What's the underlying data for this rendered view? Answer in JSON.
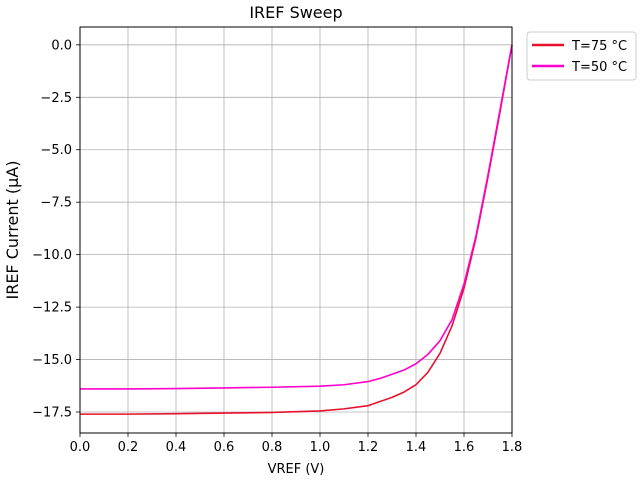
{
  "chart_data": {
    "type": "line",
    "title": "IREF Sweep",
    "xlabel": "VREF (V)",
    "ylabel": "IREF Current (µA)",
    "xlim": [
      0.0,
      1.8
    ],
    "ylim": [
      -18.5,
      0.85
    ],
    "xticks": [
      "0.0",
      "0.2",
      "0.4",
      "0.6",
      "0.8",
      "1.0",
      "1.2",
      "1.4",
      "1.6",
      "1.8"
    ],
    "yticks": [
      "0.0",
      "−2.5",
      "−5.0",
      "−7.5",
      "−10.0",
      "−12.5",
      "−15.0",
      "−17.5"
    ],
    "grid": true,
    "legend_position": "outside-top-right",
    "series": [
      {
        "name": "T=75 °C",
        "color": "#e8112d",
        "x": [
          0.0,
          0.2,
          0.4,
          0.6,
          0.8,
          1.0,
          1.1,
          1.2,
          1.25,
          1.3,
          1.35,
          1.4,
          1.45,
          1.5,
          1.55,
          1.6,
          1.65,
          1.7,
          1.75,
          1.8
        ],
        "y": [
          -17.6,
          -17.6,
          -17.58,
          -17.55,
          -17.52,
          -17.45,
          -17.35,
          -17.2,
          -17.0,
          -16.8,
          -16.55,
          -16.2,
          -15.6,
          -14.7,
          -13.4,
          -11.6,
          -9.2,
          -6.3,
          -3.2,
          0.0
        ]
      },
      {
        "name": "T=50 °C",
        "color": "#ff00cc",
        "x": [
          0.0,
          0.2,
          0.4,
          0.6,
          0.8,
          1.0,
          1.1,
          1.2,
          1.25,
          1.3,
          1.35,
          1.4,
          1.45,
          1.5,
          1.55,
          1.6,
          1.65,
          1.7,
          1.75,
          1.8
        ],
        "y": [
          -16.4,
          -16.4,
          -16.38,
          -16.35,
          -16.32,
          -16.27,
          -16.2,
          -16.05,
          -15.9,
          -15.7,
          -15.5,
          -15.2,
          -14.75,
          -14.1,
          -13.1,
          -11.4,
          -9.1,
          -6.2,
          -3.1,
          0.0
        ]
      }
    ]
  }
}
